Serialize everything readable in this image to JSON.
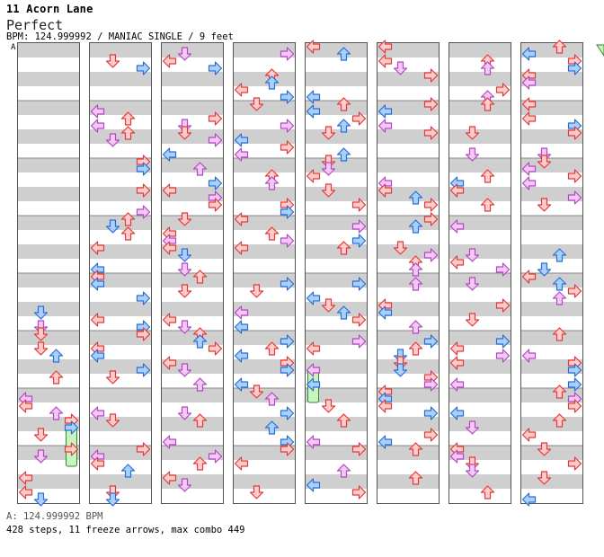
{
  "song": {
    "title": "11 Acorn Lane",
    "rank": "Perfect"
  },
  "chart_info": {
    "line": "BPM: 124.999992 / MANIAC SINGLE / 9 feet",
    "section_marker": "A"
  },
  "footer": {
    "bpm_line": "A: 124.999992 BPM",
    "stats_line": "428 steps, 11 freeze arrows, max combo 449"
  },
  "colors": {
    "stripe": "#cfcfcf",
    "red_arrow_fill": "#ffcccc",
    "red_arrow_stroke": "#e03a3a",
    "pink_arrow_fill": "#f5c7f7",
    "pink_arrow_stroke": "#b04ac0",
    "blue_arrow_fill": "#a8d0ff",
    "blue_arrow_stroke": "#2a6fd0",
    "freeze_fill": "#c8f4c0",
    "freeze_stroke": "#2f8a2a"
  },
  "chart_data": {
    "type": "step-chart",
    "mode": "MANIAC SINGLE",
    "difficulty_feet": 9,
    "bpm": 124.999992,
    "steps": 428,
    "freeze_arrows": 11,
    "max_combo": 449,
    "columns": 8,
    "measures_per_column": 8,
    "lanes": [
      "left",
      "down",
      "up",
      "right"
    ],
    "seed": 11
  }
}
